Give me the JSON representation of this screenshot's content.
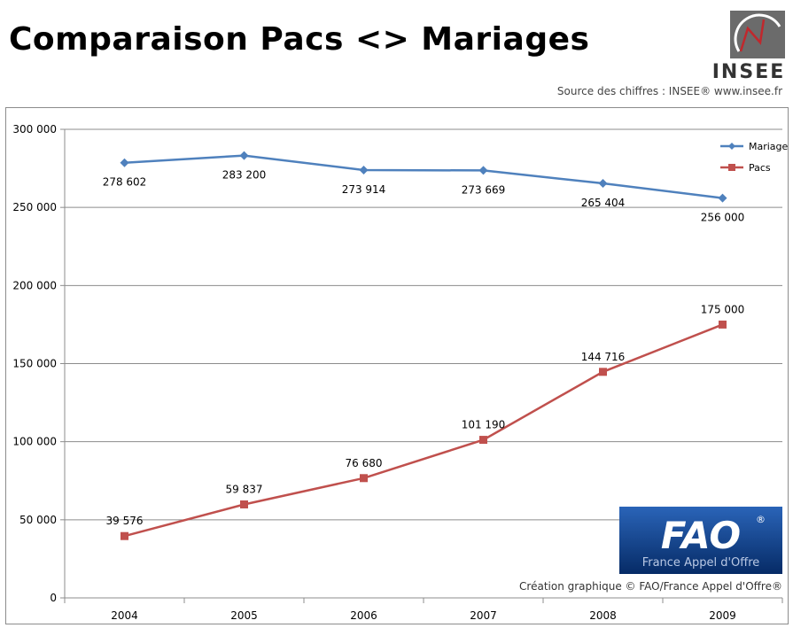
{
  "title": "Comparaison Pacs <> Mariages",
  "insee_logo_text": "INSEE",
  "source": "Source des chiffres : INSEE® www.insee.fr",
  "fao_logo": {
    "text": "FAO",
    "subtitle": "France Appel d'Offre",
    "mark": "®"
  },
  "credit": "Création graphique © FAO/France Appel d'Offre®",
  "colors": {
    "mariages": "#4f81bd",
    "pacs": "#c0504d",
    "fao_blue": "#0a3f8c"
  },
  "chart_data": {
    "type": "line",
    "categories": [
      "2004",
      "2005",
      "2006",
      "2007",
      "2008",
      "2009"
    ],
    "series": [
      {
        "name": "Mariages",
        "color": "#4f81bd",
        "marker": "diamond",
        "values": [
          278602,
          283200,
          273914,
          273669,
          265404,
          256000
        ],
        "labels": [
          "278 602",
          "283 200",
          "273 914",
          "273 669",
          "265 404",
          "256 000"
        ]
      },
      {
        "name": "Pacs",
        "color": "#c0504d",
        "marker": "square",
        "values": [
          39576,
          59837,
          76680,
          101190,
          144716,
          175000
        ],
        "labels": [
          "39 576",
          "59 837",
          "76 680",
          "101 190",
          "144 716",
          "175 000"
        ]
      }
    ],
    "ylim": [
      0,
      300000
    ],
    "yticks": [
      0,
      50000,
      100000,
      150000,
      200000,
      250000,
      300000
    ],
    "ytick_labels": [
      "0",
      "50 000",
      "100 000",
      "150 000",
      "200 000",
      "250 000",
      "300 000"
    ],
    "grid": true,
    "legend_position": "top-right"
  }
}
